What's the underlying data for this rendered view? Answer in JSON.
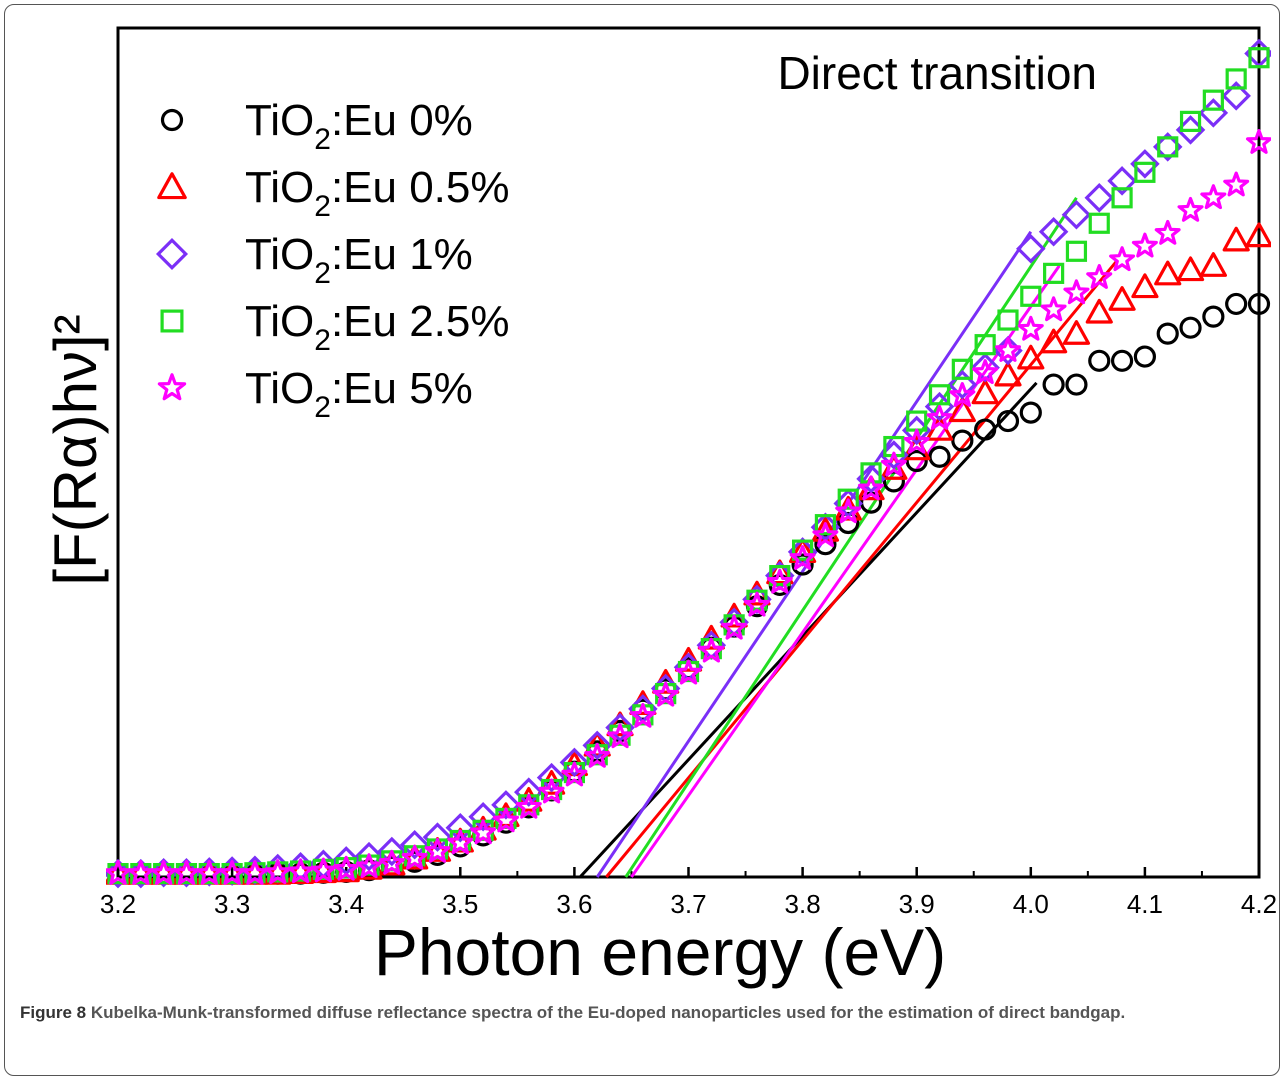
{
  "figure_caption": {
    "label": "Figure 8",
    "text": "Kubelka-Munk-transformed diffuse reflectance spectra of the Eu-doped nanoparticles used for the estimation of direct bandgap."
  },
  "chart_data": {
    "type": "scatter",
    "title": "",
    "annotation": "Direct transition",
    "xlabel": "Photon energy (eV)",
    "ylabel": "[F(Rα)hν]²",
    "xlim": [
      3.2,
      4.2
    ],
    "ylim": [
      0,
      1.0
    ],
    "x_ticks": [
      "3.2",
      "3.3",
      "3.4",
      "3.5",
      "3.6",
      "3.7",
      "3.8",
      "3.9",
      "4.0",
      "4.1",
      "4.2"
    ],
    "y_ticks_shown": false,
    "grid": false,
    "legend_position": "top-left",
    "series": [
      {
        "name": "TiO2:Eu 0%",
        "name_base": "TiO",
        "name_sub": "2",
        "name_rest": ":Eu 0%",
        "marker": "circle",
        "color": "#000000",
        "x": [
          3.2,
          3.22,
          3.24,
          3.26,
          3.28,
          3.3,
          3.32,
          3.34,
          3.36,
          3.38,
          3.4,
          3.42,
          3.44,
          3.46,
          3.48,
          3.5,
          3.52,
          3.54,
          3.56,
          3.58,
          3.6,
          3.62,
          3.64,
          3.66,
          3.68,
          3.7,
          3.72,
          3.74,
          3.76,
          3.78,
          3.8,
          3.82,
          3.84,
          3.86,
          3.88,
          3.9,
          3.92,
          3.94,
          3.96,
          3.98,
          4.0,
          4.02,
          4.04,
          4.06,
          4.08,
          4.1,
          4.12,
          4.14,
          4.16,
          4.18,
          4.2
        ],
        "y": [
          0.004,
          0.004,
          0.004,
          0.004,
          0.004,
          0.004,
          0.004,
          0.004,
          0.004,
          0.005,
          0.006,
          0.008,
          0.012,
          0.018,
          0.026,
          0.036,
          0.049,
          0.064,
          0.082,
          0.102,
          0.124,
          0.148,
          0.172,
          0.197,
          0.221,
          0.246,
          0.27,
          0.295,
          0.319,
          0.344,
          0.368,
          0.392,
          0.417,
          0.441,
          0.466,
          0.49,
          0.495,
          0.514,
          0.527,
          0.537,
          0.547,
          0.58,
          0.58,
          0.608,
          0.608,
          0.613,
          0.64,
          0.647,
          0.66,
          0.675,
          0.675
        ]
      },
      {
        "name": "TiO2:Eu 0.5%",
        "name_base": "TiO",
        "name_sub": "2",
        "name_rest": ":Eu 0.5%",
        "marker": "triangle",
        "color": "#ff0000",
        "x": [
          3.2,
          3.22,
          3.24,
          3.26,
          3.28,
          3.3,
          3.32,
          3.34,
          3.36,
          3.38,
          3.4,
          3.42,
          3.44,
          3.46,
          3.48,
          3.5,
          3.52,
          3.54,
          3.56,
          3.58,
          3.6,
          3.62,
          3.64,
          3.66,
          3.68,
          3.7,
          3.72,
          3.74,
          3.76,
          3.78,
          3.8,
          3.82,
          3.84,
          3.86,
          3.88,
          3.9,
          3.92,
          3.94,
          3.96,
          3.98,
          4.0,
          4.02,
          4.04,
          4.06,
          4.08,
          4.1,
          4.12,
          4.14,
          4.16,
          4.18,
          4.2
        ],
        "y": [
          0.004,
          0.004,
          0.004,
          0.004,
          0.004,
          0.004,
          0.004,
          0.004,
          0.005,
          0.006,
          0.007,
          0.01,
          0.015,
          0.022,
          0.031,
          0.042,
          0.056,
          0.072,
          0.09,
          0.11,
          0.132,
          0.155,
          0.179,
          0.204,
          0.229,
          0.255,
          0.281,
          0.307,
          0.333,
          0.358,
          0.383,
          0.408,
          0.433,
          0.457,
          0.481,
          0.504,
          0.527,
          0.549,
          0.57,
          0.591,
          0.611,
          0.63,
          0.64,
          0.665,
          0.68,
          0.695,
          0.71,
          0.715,
          0.72,
          0.75,
          0.755
        ]
      },
      {
        "name": "TiO2:Eu 1%",
        "name_base": "TiO",
        "name_sub": "2",
        "name_rest": ":Eu 1%",
        "marker": "diamond",
        "color": "#7b2ff7",
        "x": [
          3.2,
          3.22,
          3.24,
          3.26,
          3.28,
          3.3,
          3.32,
          3.34,
          3.36,
          3.38,
          3.4,
          3.42,
          3.44,
          3.46,
          3.48,
          3.5,
          3.52,
          3.54,
          3.56,
          3.58,
          3.6,
          3.62,
          3.64,
          3.66,
          3.68,
          3.7,
          3.72,
          3.74,
          3.76,
          3.78,
          3.8,
          3.82,
          3.84,
          3.86,
          3.88,
          3.9,
          3.92,
          3.94,
          3.96,
          3.98,
          4.0,
          4.02,
          4.04,
          4.06,
          4.08,
          4.1,
          4.12,
          4.14,
          4.16,
          4.18,
          4.2
        ],
        "y": [
          0.004,
          0.004,
          0.005,
          0.005,
          0.006,
          0.007,
          0.008,
          0.01,
          0.012,
          0.015,
          0.019,
          0.024,
          0.03,
          0.038,
          0.047,
          0.058,
          0.071,
          0.085,
          0.1,
          0.117,
          0.135,
          0.155,
          0.176,
          0.198,
          0.222,
          0.247,
          0.273,
          0.3,
          0.327,
          0.355,
          0.383,
          0.412,
          0.44,
          0.469,
          0.497,
          0.526,
          0.554,
          0.58,
          0.6,
          0.62,
          0.74,
          0.76,
          0.78,
          0.8,
          0.82,
          0.84,
          0.86,
          0.88,
          0.9,
          0.92,
          0.97
        ]
      },
      {
        "name": "TiO2:Eu 2.5%",
        "name_base": "TiO",
        "name_sub": "2",
        "name_rest": ":Eu 2.5%",
        "marker": "square",
        "color": "#22dd22",
        "x": [
          3.2,
          3.22,
          3.24,
          3.26,
          3.28,
          3.3,
          3.32,
          3.34,
          3.36,
          3.38,
          3.4,
          3.42,
          3.44,
          3.46,
          3.48,
          3.5,
          3.52,
          3.54,
          3.56,
          3.58,
          3.6,
          3.62,
          3.64,
          3.66,
          3.68,
          3.7,
          3.72,
          3.74,
          3.76,
          3.78,
          3.8,
          3.82,
          3.84,
          3.86,
          3.88,
          3.9,
          3.92,
          3.94,
          3.96,
          3.98,
          4.0,
          4.02,
          4.04,
          4.06,
          4.08,
          4.1,
          4.12,
          4.14,
          4.16,
          4.18,
          4.2
        ],
        "y": [
          0.004,
          0.004,
          0.004,
          0.004,
          0.004,
          0.004,
          0.005,
          0.006,
          0.007,
          0.009,
          0.011,
          0.014,
          0.019,
          0.025,
          0.033,
          0.043,
          0.055,
          0.069,
          0.085,
          0.103,
          0.123,
          0.144,
          0.167,
          0.191,
          0.216,
          0.242,
          0.269,
          0.297,
          0.326,
          0.355,
          0.385,
          0.415,
          0.445,
          0.476,
          0.507,
          0.537,
          0.568,
          0.598,
          0.627,
          0.656,
          0.684,
          0.711,
          0.737,
          0.77,
          0.8,
          0.83,
          0.86,
          0.89,
          0.915,
          0.94,
          0.965
        ]
      },
      {
        "name": "TiO2:Eu 5%",
        "name_base": "TiO",
        "name_sub": "2",
        "name_rest": ":Eu 5%",
        "marker": "star",
        "color": "#ff00ff",
        "x": [
          3.2,
          3.22,
          3.24,
          3.26,
          3.28,
          3.3,
          3.32,
          3.34,
          3.36,
          3.38,
          3.4,
          3.42,
          3.44,
          3.46,
          3.48,
          3.5,
          3.52,
          3.54,
          3.56,
          3.58,
          3.6,
          3.62,
          3.64,
          3.66,
          3.68,
          3.7,
          3.72,
          3.74,
          3.76,
          3.78,
          3.8,
          3.82,
          3.84,
          3.86,
          3.88,
          3.9,
          3.92,
          3.94,
          3.96,
          3.98,
          4.0,
          4.02,
          4.04,
          4.06,
          4.08,
          4.1,
          4.12,
          4.14,
          4.16,
          4.18,
          4.2
        ],
        "y": [
          0.004,
          0.004,
          0.004,
          0.004,
          0.004,
          0.004,
          0.004,
          0.005,
          0.006,
          0.007,
          0.009,
          0.012,
          0.016,
          0.022,
          0.03,
          0.04,
          0.052,
          0.066,
          0.082,
          0.1,
          0.12,
          0.142,
          0.165,
          0.189,
          0.214,
          0.24,
          0.266,
          0.293,
          0.32,
          0.347,
          0.375,
          0.402,
          0.43,
          0.457,
          0.485,
          0.512,
          0.54,
          0.567,
          0.594,
          0.62,
          0.645,
          0.668,
          0.688,
          0.706,
          0.727,
          0.743,
          0.758,
          0.785,
          0.8,
          0.815,
          0.865
        ]
      }
    ],
    "fit_lines": [
      {
        "color": "#000000",
        "x": [
          3.605,
          4.005
        ],
        "y": [
          0.0,
          0.582
        ]
      },
      {
        "color": "#ff0000",
        "x": [
          3.628,
          4.075
        ],
        "y": [
          0.0,
          0.725
        ]
      },
      {
        "color": "#7b2ff7",
        "x": [
          3.62,
          4.0
        ],
        "y": [
          0.0,
          0.76
        ]
      },
      {
        "color": "#22dd22",
        "x": [
          3.645,
          4.04
        ],
        "y": [
          0.0,
          0.8
        ]
      },
      {
        "color": "#ff00ff",
        "x": [
          3.65,
          4.025
        ],
        "y": [
          0.0,
          0.72
        ]
      }
    ]
  }
}
